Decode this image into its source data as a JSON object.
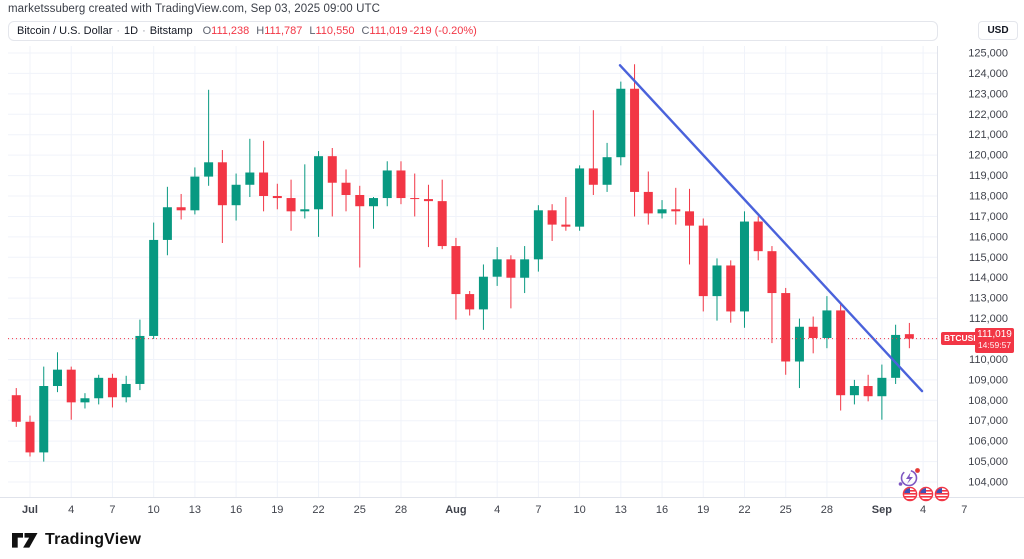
{
  "meta": {
    "attribution": "marketssuberg created with TradingView.com, Sep 03, 2025 09:00 UTC"
  },
  "header": {
    "symbol": "Bitcoin / U.S. Dollar",
    "sep1": "·",
    "interval": "1D",
    "sep2": "·",
    "exchange": "Bitstamp",
    "ohlc": [
      {
        "k": "O",
        "v": "111,238"
      },
      {
        "k": "H",
        "v": "111,787"
      },
      {
        "k": "L",
        "v": "110,550"
      },
      {
        "k": "C",
        "v": "111,019"
      }
    ],
    "change": "-219 (-0.20%)"
  },
  "price_axis": {
    "currency_label": "USD",
    "tick_values": [
      125000,
      124000,
      123000,
      122000,
      121000,
      120000,
      119000,
      118000,
      117000,
      116000,
      115000,
      114000,
      113000,
      112000,
      111000,
      110000,
      109000,
      108000,
      107000,
      106000,
      105000,
      104000
    ]
  },
  "time_axis": {
    "ticks": [
      {
        "label": "Jul",
        "day": 0,
        "bold": true
      },
      {
        "label": "4",
        "day": 3,
        "bold": false
      },
      {
        "label": "7",
        "day": 6,
        "bold": false
      },
      {
        "label": "10",
        "day": 9,
        "bold": false
      },
      {
        "label": "13",
        "day": 12,
        "bold": false
      },
      {
        "label": "16",
        "day": 15,
        "bold": false
      },
      {
        "label": "19",
        "day": 18,
        "bold": false
      },
      {
        "label": "22",
        "day": 21,
        "bold": false
      },
      {
        "label": "25",
        "day": 24,
        "bold": false
      },
      {
        "label": "28",
        "day": 27,
        "bold": false
      },
      {
        "label": "Aug",
        "day": 31,
        "bold": true
      },
      {
        "label": "4",
        "day": 34,
        "bold": false
      },
      {
        "label": "7",
        "day": 37,
        "bold": false
      },
      {
        "label": "10",
        "day": 40,
        "bold": false
      },
      {
        "label": "13",
        "day": 43,
        "bold": false
      },
      {
        "label": "16",
        "day": 46,
        "bold": false
      },
      {
        "label": "19",
        "day": 49,
        "bold": false
      },
      {
        "label": "22",
        "day": 52,
        "bold": false
      },
      {
        "label": "25",
        "day": 55,
        "bold": false
      },
      {
        "label": "28",
        "day": 58,
        "bold": false
      },
      {
        "label": "Sep",
        "day": 62,
        "bold": true
      },
      {
        "label": "4",
        "day": 65,
        "bold": false
      },
      {
        "label": "7",
        "day": 68,
        "bold": false
      }
    ]
  },
  "price_label": {
    "symbol": "BTCUSD",
    "price_text": "111,019",
    "countdown": "14:59:57",
    "price_value": 111019
  },
  "chart_data": {
    "type": "candlestick",
    "title": "Bitcoin / U.S. Dollar, 1D, Bitstamp",
    "ylabel": "USD",
    "price_range_visible": [
      103500,
      125500
    ],
    "grid": true,
    "up_color": "#089981",
    "down_color": "#f23645",
    "trendline": {
      "color": "#4a62db",
      "from_day": 42.94,
      "from_price": 124400,
      "to_day": 64.92,
      "to_price": 108450
    },
    "last_price_line": {
      "value": 111019,
      "color": "#f23645",
      "style": "dotted"
    },
    "candle_columns": [
      "date",
      "day_offset_from_Jul1",
      "open",
      "high",
      "low",
      "close"
    ],
    "candles": [
      [
        "Jun 30",
        -1,
        108250,
        108600,
        106700,
        106950
      ],
      [
        "Jul 1",
        0,
        106950,
        107250,
        105250,
        105450
      ],
      [
        "Jul 2",
        1,
        105450,
        109650,
        105000,
        108700
      ],
      [
        "Jul 3",
        2,
        108700,
        110350,
        108400,
        109500
      ],
      [
        "Jul 4",
        3,
        109500,
        109650,
        107050,
        107900
      ],
      [
        "Jul 5",
        4,
        107900,
        108350,
        107600,
        108100
      ],
      [
        "Jul 6",
        5,
        108100,
        109250,
        107800,
        109100
      ],
      [
        "Jul 7",
        6,
        109100,
        109300,
        107650,
        108150
      ],
      [
        "Jul 8",
        7,
        108150,
        109200,
        107900,
        108800
      ],
      [
        "Jul 9",
        8,
        108800,
        111950,
        108500,
        111150
      ],
      [
        "Jul 10",
        9,
        111150,
        116700,
        111000,
        115850
      ],
      [
        "Jul 11",
        10,
        115850,
        118450,
        115100,
        117450
      ],
      [
        "Jul 12",
        11,
        117450,
        118100,
        116850,
        117300
      ],
      [
        "Jul 13",
        12,
        117300,
        119400,
        117100,
        118950
      ],
      [
        "Jul 14",
        13,
        118950,
        123200,
        118500,
        119650
      ],
      [
        "Jul 15",
        14,
        119650,
        120250,
        115700,
        117550
      ],
      [
        "Jul 16",
        15,
        117550,
        119100,
        116800,
        118550
      ],
      [
        "Jul 17",
        16,
        118550,
        120800,
        117950,
        119150
      ],
      [
        "Jul 18",
        17,
        119150,
        120700,
        117250,
        118000
      ],
      [
        "Jul 19",
        18,
        118000,
        118600,
        117350,
        117900
      ],
      [
        "Jul 20",
        19,
        117900,
        118800,
        116300,
        117250
      ],
      [
        "Jul 21",
        20,
        117250,
        119550,
        116900,
        117350
      ],
      [
        "Jul 22",
        21,
        117350,
        120200,
        116000,
        119950
      ],
      [
        "Jul 23",
        22,
        119950,
        120350,
        117000,
        118650
      ],
      [
        "Jul 24",
        23,
        118650,
        119300,
        117250,
        118050
      ],
      [
        "Jul 25",
        24,
        118050,
        118500,
        114500,
        117500
      ],
      [
        "Jul 26",
        25,
        117500,
        117950,
        116400,
        117900
      ],
      [
        "Jul 27",
        26,
        117900,
        119700,
        117500,
        119250
      ],
      [
        "Jul 28",
        27,
        119250,
        119700,
        117600,
        117900
      ],
      [
        "Jul 29",
        28,
        117900,
        119100,
        117000,
        117850
      ],
      [
        "Jul 30",
        29,
        117850,
        118550,
        115500,
        117750
      ],
      [
        "Jul 31",
        30,
        117750,
        118800,
        115400,
        115550
      ],
      [
        "Aug 1",
        31,
        115550,
        115950,
        111950,
        113200
      ],
      [
        "Aug 2",
        32,
        113200,
        113350,
        112150,
        112450
      ],
      [
        "Aug 3",
        33,
        112450,
        114650,
        111450,
        114050
      ],
      [
        "Aug 4",
        34,
        114050,
        115500,
        113600,
        114900
      ],
      [
        "Aug 5",
        35,
        114900,
        115100,
        112500,
        114000
      ],
      [
        "Aug 6",
        36,
        114000,
        115550,
        113250,
        114900
      ],
      [
        "Aug 7",
        37,
        114900,
        117550,
        114300,
        117300
      ],
      [
        "Aug 8",
        38,
        117300,
        117600,
        115800,
        116600
      ],
      [
        "Aug 9",
        39,
        116600,
        117950,
        116300,
        116500
      ],
      [
        "Aug 10",
        40,
        116500,
        119500,
        116300,
        119350
      ],
      [
        "Aug 11",
        41,
        119350,
        122200,
        118050,
        118550
      ],
      [
        "Aug 12",
        42,
        118550,
        120600,
        118200,
        119900
      ],
      [
        "Aug 13",
        43,
        119900,
        123600,
        119500,
        123250
      ],
      [
        "Aug 14",
        44,
        123250,
        124450,
        117000,
        118200
      ],
      [
        "Aug 15",
        45,
        118200,
        119200,
        116600,
        117150
      ],
      [
        "Aug 16",
        46,
        117150,
        117800,
        116900,
        117350
      ],
      [
        "Aug 17",
        47,
        117350,
        118400,
        116600,
        117250
      ],
      [
        "Aug 18",
        48,
        117250,
        118350,
        114650,
        116550
      ],
      [
        "Aug 19",
        49,
        116550,
        116900,
        112350,
        113100
      ],
      [
        "Aug 20",
        50,
        113100,
        114950,
        111900,
        114600
      ],
      [
        "Aug 21",
        51,
        114600,
        114850,
        111800,
        112350
      ],
      [
        "Aug 22",
        52,
        112350,
        117250,
        111550,
        116750
      ],
      [
        "Aug 23",
        53,
        116750,
        117000,
        114850,
        115300
      ],
      [
        "Aug 24",
        54,
        115300,
        115550,
        110800,
        113250
      ],
      [
        "Aug 25",
        55,
        113250,
        113500,
        109250,
        109900
      ],
      [
        "Aug 26",
        56,
        109900,
        112000,
        108600,
        111600
      ],
      [
        "Aug 27",
        57,
        111600,
        112100,
        110300,
        111050
      ],
      [
        "Aug 28",
        58,
        111050,
        113100,
        110550,
        112400
      ],
      [
        "Aug 29",
        59,
        112400,
        112700,
        107500,
        108250
      ],
      [
        "Aug 30",
        60,
        108250,
        109000,
        107800,
        108700
      ],
      [
        "Aug 31",
        61,
        108700,
        109250,
        107950,
        108200
      ],
      [
        "Sep 1",
        62,
        108200,
        109750,
        107050,
        109100
      ],
      [
        "Sep 2",
        63,
        109100,
        111700,
        108800,
        111200
      ],
      [
        "Sep 3",
        64,
        111238,
        111787,
        110550,
        111019
      ]
    ]
  },
  "events": {
    "description": "economic event markers",
    "us_flag_count": 3
  },
  "logo": {
    "brand": "TradingView"
  }
}
